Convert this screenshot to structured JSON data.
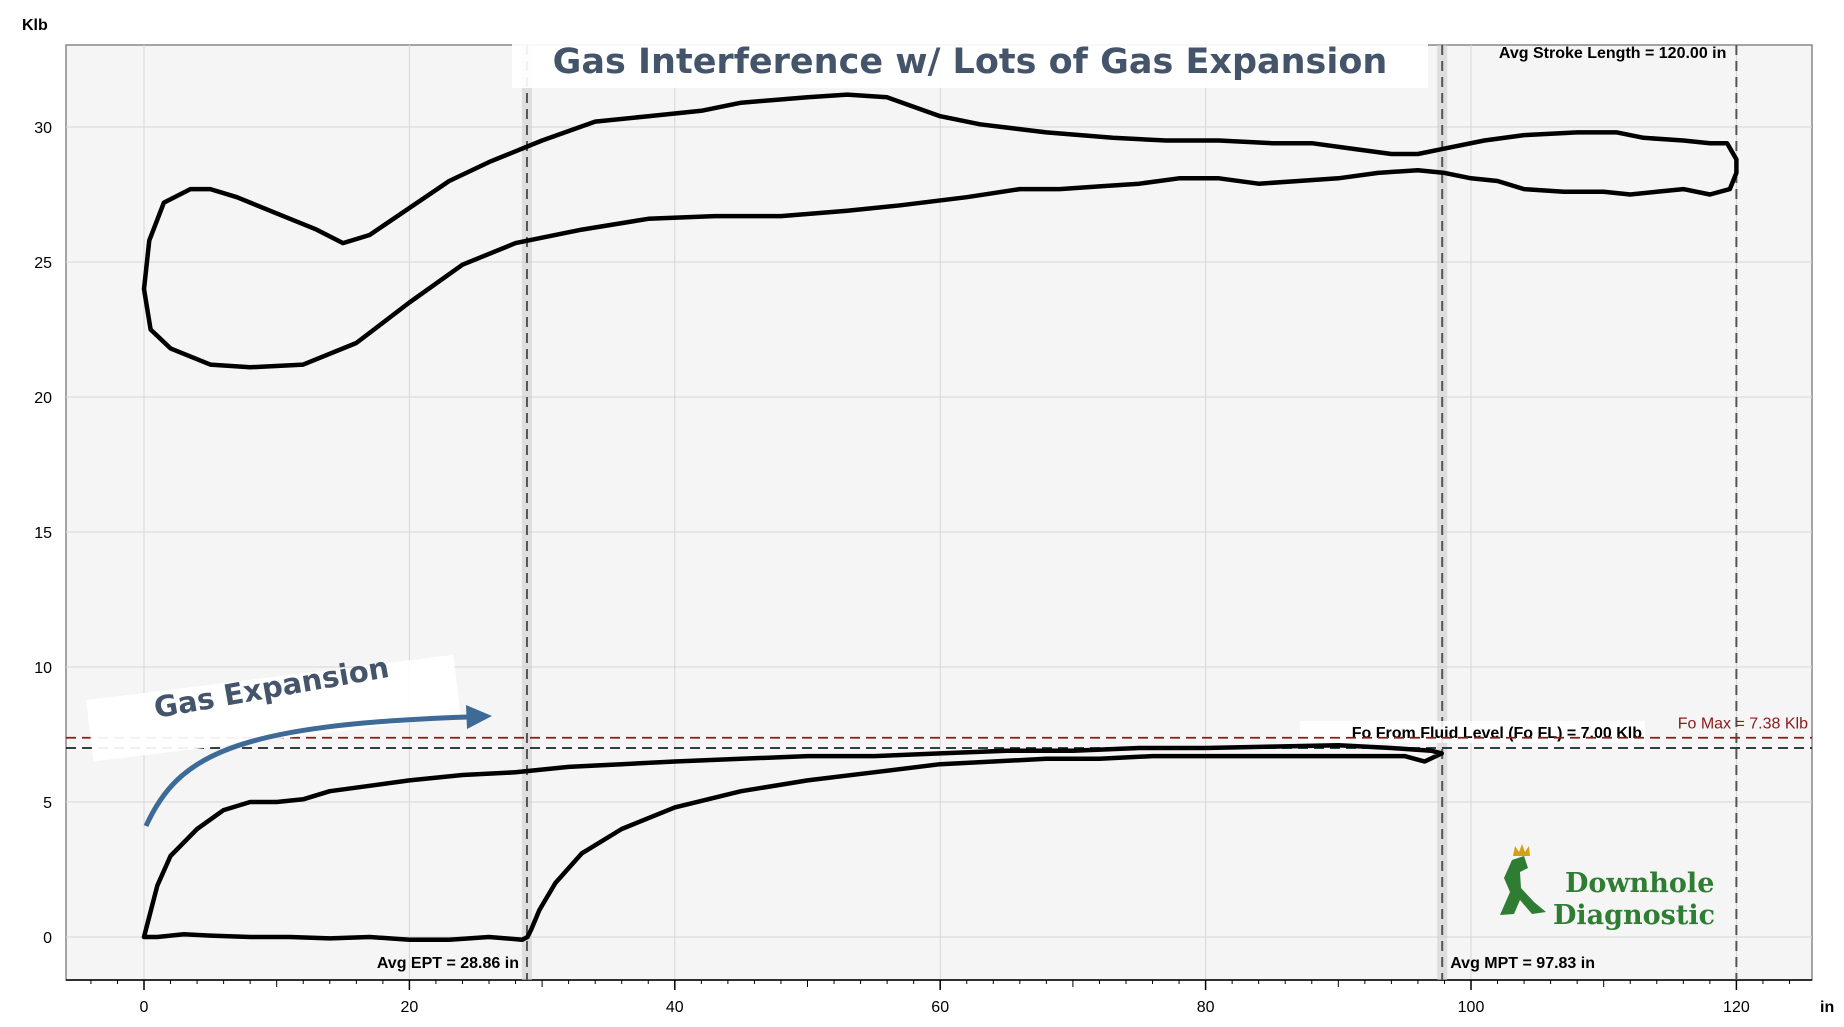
{
  "chart_data": {
    "type": "line",
    "title": "Gas Interference w/ Lots of Gas Expansion",
    "xlabel": "in",
    "ylabel": "Klb",
    "xlim": [
      -6,
      126
    ],
    "ylim": [
      -1.9,
      33
    ],
    "x_ticks": [
      0,
      20,
      40,
      60,
      80,
      100,
      120
    ],
    "y_ticks": [
      0,
      5,
      10,
      15,
      20,
      25,
      30
    ],
    "grid": true,
    "series": [
      {
        "kind": "surface-card",
        "color": "#000000",
        "points": [
          [
            0,
            24.0
          ],
          [
            0.4,
            25.8
          ],
          [
            1.5,
            27.2
          ],
          [
            3.5,
            27.7
          ],
          [
            5,
            27.7
          ],
          [
            7,
            27.4
          ],
          [
            10,
            26.8
          ],
          [
            13,
            26.2
          ],
          [
            15,
            25.7
          ],
          [
            17,
            26.0
          ],
          [
            20,
            27.0
          ],
          [
            23,
            28.0
          ],
          [
            26,
            28.7
          ],
          [
            30,
            29.5
          ],
          [
            34,
            30.2
          ],
          [
            38,
            30.4
          ],
          [
            42,
            30.6
          ],
          [
            45,
            30.9
          ],
          [
            50,
            31.1
          ],
          [
            53,
            31.2
          ],
          [
            56,
            31.1
          ],
          [
            60,
            30.4
          ],
          [
            63,
            30.1
          ],
          [
            68,
            29.8
          ],
          [
            73,
            29.6
          ],
          [
            77,
            29.5
          ],
          [
            81,
            29.5
          ],
          [
            85,
            29.4
          ],
          [
            88,
            29.4
          ],
          [
            91,
            29.2
          ],
          [
            94,
            29.0
          ],
          [
            96,
            29.0
          ],
          [
            98,
            29.2
          ],
          [
            101,
            29.5
          ],
          [
            104,
            29.7
          ],
          [
            108,
            29.8
          ],
          [
            111,
            29.8
          ],
          [
            113,
            29.6
          ],
          [
            116,
            29.5
          ],
          [
            118,
            29.4
          ],
          [
            119.3,
            29.4
          ],
          [
            120,
            28.8
          ],
          [
            120,
            28.3
          ],
          [
            119.5,
            27.7
          ],
          [
            118,
            27.5
          ],
          [
            116,
            27.7
          ],
          [
            114,
            27.6
          ],
          [
            112,
            27.5
          ],
          [
            110,
            27.6
          ],
          [
            107,
            27.6
          ],
          [
            104,
            27.7
          ],
          [
            102,
            28.0
          ],
          [
            100,
            28.1
          ],
          [
            98,
            28.3
          ],
          [
            96,
            28.4
          ],
          [
            93,
            28.3
          ],
          [
            90,
            28.1
          ],
          [
            87,
            28.0
          ],
          [
            84,
            27.9
          ],
          [
            81,
            28.1
          ],
          [
            78,
            28.1
          ],
          [
            75,
            27.9
          ],
          [
            72,
            27.8
          ],
          [
            69,
            27.7
          ],
          [
            66,
            27.7
          ],
          [
            62,
            27.4
          ],
          [
            57,
            27.1
          ],
          [
            53,
            26.9
          ],
          [
            48,
            26.7
          ],
          [
            43,
            26.7
          ],
          [
            38,
            26.6
          ],
          [
            33,
            26.2
          ],
          [
            28,
            25.7
          ],
          [
            24,
            24.9
          ],
          [
            20,
            23.5
          ],
          [
            16,
            22.0
          ],
          [
            12,
            21.2
          ],
          [
            8,
            21.1
          ],
          [
            5,
            21.2
          ],
          [
            2,
            21.8
          ],
          [
            0.5,
            22.5
          ],
          [
            0,
            24.0
          ]
        ]
      },
      {
        "kind": "pump-card",
        "color": "#000000",
        "points": [
          [
            0,
            0.0
          ],
          [
            1,
            1.9
          ],
          [
            2,
            3.0
          ],
          [
            4,
            4.0
          ],
          [
            6,
            4.7
          ],
          [
            8,
            5.0
          ],
          [
            10,
            5.0
          ],
          [
            12,
            5.1
          ],
          [
            14,
            5.4
          ],
          [
            17,
            5.6
          ],
          [
            20,
            5.8
          ],
          [
            24,
            6.0
          ],
          [
            28,
            6.1
          ],
          [
            32,
            6.3
          ],
          [
            36,
            6.4
          ],
          [
            40,
            6.5
          ],
          [
            45,
            6.6
          ],
          [
            50,
            6.7
          ],
          [
            55,
            6.7
          ],
          [
            60,
            6.8
          ],
          [
            65,
            6.9
          ],
          [
            70,
            6.9
          ],
          [
            75,
            7.0
          ],
          [
            80,
            7.0
          ],
          [
            85,
            7.05
          ],
          [
            90,
            7.1
          ],
          [
            94,
            7.0
          ],
          [
            97,
            6.9
          ],
          [
            97.8,
            6.8
          ],
          [
            96.5,
            6.5
          ],
          [
            95,
            6.7
          ],
          [
            92,
            6.7
          ],
          [
            88,
            6.7
          ],
          [
            84,
            6.7
          ],
          [
            80,
            6.7
          ],
          [
            76,
            6.7
          ],
          [
            72,
            6.6
          ],
          [
            68,
            6.6
          ],
          [
            64,
            6.5
          ],
          [
            60,
            6.4
          ],
          [
            55,
            6.1
          ],
          [
            50,
            5.8
          ],
          [
            45,
            5.4
          ],
          [
            40,
            4.8
          ],
          [
            36,
            4.0
          ],
          [
            33,
            3.1
          ],
          [
            31,
            2.0
          ],
          [
            29.8,
            1.0
          ],
          [
            29.2,
            0.3
          ],
          [
            28.9,
            0.0
          ],
          [
            28.5,
            -0.1
          ],
          [
            26,
            0.0
          ],
          [
            23,
            -0.1
          ],
          [
            20,
            -0.1
          ],
          [
            17,
            0.0
          ],
          [
            14,
            -0.05
          ],
          [
            11,
            0.0
          ],
          [
            8,
            0.0
          ],
          [
            5,
            0.05
          ],
          [
            3,
            0.1
          ],
          [
            1,
            0.0
          ],
          [
            0,
            0.0
          ]
        ]
      }
    ],
    "reference_lines": [
      {
        "axis": "x",
        "value": 28.86,
        "label": "Avg EPT = 28.86 in",
        "color": "#555555",
        "style": "dashed"
      },
      {
        "axis": "x",
        "value": 97.83,
        "label": "Avg MPT = 97.83 in",
        "color": "#555555",
        "style": "dashed"
      },
      {
        "axis": "x",
        "value": 120.0,
        "label": "Avg Stroke Length = 120.00 in",
        "color": "#555555",
        "style": "dashed"
      },
      {
        "axis": "y",
        "value": 7.0,
        "label": "Fo From Fluid Level (Fo FL) = 7.00 Klb",
        "color": "#222222",
        "style": "dashed"
      },
      {
        "axis": "y",
        "value": 7.38,
        "label": "Fo Max = 7.38 Klb",
        "color": "#8b1a1a",
        "style": "dashed"
      }
    ],
    "annotations": [
      {
        "text": "Gas Expansion",
        "color": "#44546a",
        "arrow_color": "#3e6a97"
      }
    ]
  },
  "logo": {
    "line1": "Downhole",
    "line2": "Diagnostic",
    "color": "#2e7d32",
    "accent": "#d4a017"
  }
}
